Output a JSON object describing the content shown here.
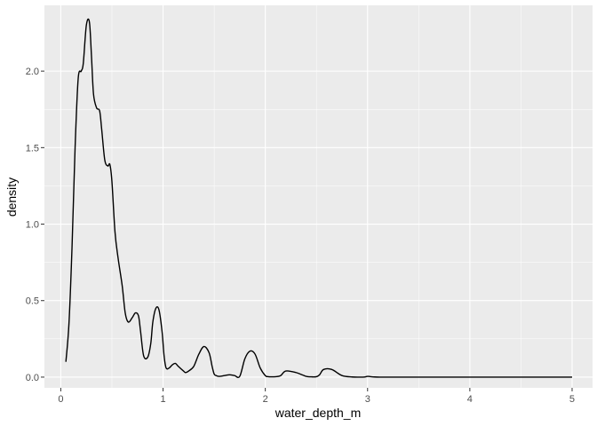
{
  "chart_data": {
    "type": "line",
    "subtype": "density",
    "title": "",
    "xlabel": "water_depth_m",
    "ylabel": "density",
    "xlim": [
      -0.16,
      5.2
    ],
    "ylim": [
      -0.07,
      2.43
    ],
    "x_ticks": [
      0,
      1,
      2,
      3,
      4,
      5
    ],
    "x_tick_labels": [
      "0",
      "1",
      "2",
      "3",
      "4",
      "5"
    ],
    "y_ticks": [
      0.0,
      0.5,
      1.0,
      1.5,
      2.0
    ],
    "y_tick_labels": [
      "0.0",
      "0.5",
      "1.0",
      "1.5",
      "2.0"
    ],
    "grid": true,
    "legend": "none",
    "colors": {
      "panel": "#ebebeb",
      "grid_major": "#ffffff",
      "line": "#000000"
    },
    "series": [
      {
        "x": [
          0.05,
          0.08,
          0.11,
          0.14,
          0.17,
          0.2,
          0.22,
          0.25,
          0.28,
          0.3,
          0.32,
          0.35,
          0.38,
          0.4,
          0.43,
          0.46,
          0.48,
          0.5,
          0.53,
          0.56,
          0.6,
          0.63,
          0.66,
          0.7,
          0.73,
          0.76,
          0.78,
          0.81,
          0.85,
          0.88,
          0.9,
          0.93,
          0.96,
          0.99,
          1.01,
          1.03,
          1.06,
          1.09,
          1.12,
          1.15,
          1.2,
          1.22,
          1.25,
          1.3,
          1.35,
          1.4,
          1.45,
          1.48,
          1.5,
          1.52,
          1.55,
          1.6,
          1.65,
          1.7,
          1.75,
          1.8,
          1.85,
          1.9,
          1.95,
          2.0,
          2.03,
          2.06,
          2.1,
          2.15,
          2.2,
          2.3,
          2.4,
          2.45,
          2.5,
          2.53,
          2.57,
          2.65,
          2.75,
          2.85,
          2.93,
          2.97,
          3.0,
          3.03,
          3.07,
          3.12,
          3.2,
          3.5,
          3.9,
          3.95,
          4.0,
          4.05,
          4.1,
          4.5,
          5.0
        ],
        "y": [
          0.1,
          0.35,
          0.85,
          1.5,
          1.95,
          2.0,
          2.05,
          2.3,
          2.32,
          2.1,
          1.85,
          1.76,
          1.74,
          1.62,
          1.42,
          1.38,
          1.39,
          1.28,
          0.95,
          0.78,
          0.6,
          0.42,
          0.36,
          0.39,
          0.42,
          0.4,
          0.3,
          0.14,
          0.13,
          0.22,
          0.36,
          0.45,
          0.44,
          0.3,
          0.14,
          0.06,
          0.06,
          0.08,
          0.09,
          0.07,
          0.04,
          0.03,
          0.04,
          0.07,
          0.15,
          0.2,
          0.16,
          0.07,
          0.02,
          0.01,
          0.005,
          0.01,
          0.015,
          0.01,
          0.005,
          0.12,
          0.17,
          0.15,
          0.06,
          0.01,
          0.003,
          0.002,
          0.003,
          0.01,
          0.04,
          0.03,
          0.005,
          0.002,
          0.003,
          0.015,
          0.05,
          0.05,
          0.01,
          0.001,
          0.0,
          0.001,
          0.005,
          0.003,
          0.001,
          0.0,
          0.0,
          0.0,
          0.0,
          0.0,
          0.0,
          0.0,
          0.0,
          0.0,
          0.0
        ]
      }
    ]
  }
}
